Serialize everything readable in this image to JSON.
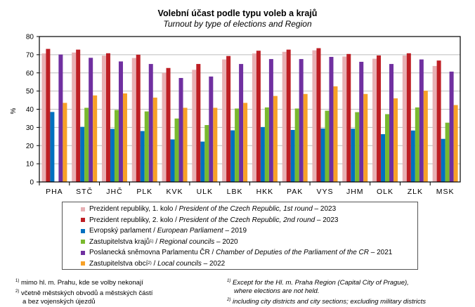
{
  "chart_data": {
    "type": "bar",
    "title": "Volební účast podle typu voleb a krajů",
    "subtitle": "Turnout by type of elections and Region",
    "ylabel": "%",
    "xlabel": "",
    "ylim": [
      0,
      80
    ],
    "yticks": [
      0,
      10,
      20,
      30,
      40,
      50,
      60,
      70,
      80
    ],
    "grid": true,
    "categories": [
      "PHA",
      "STČ",
      "JHČ",
      "PLK",
      "KVK",
      "ULK",
      "LBK",
      "HKK",
      "PAK",
      "VYS",
      "JHM",
      "OLK",
      "ZLK",
      "MSK"
    ],
    "series": [
      {
        "name": "Prezident republiky, 1. kolo",
        "name_en": "President of the Czech Republic, 1st round",
        "year": "2023",
        "sup": "",
        "color": "#e8b0b4",
        "values": [
          70.7,
          71.2,
          69.5,
          68.2,
          60.0,
          61.7,
          67.4,
          70.7,
          71.6,
          72.4,
          69.0,
          67.8,
          69.6,
          63.8
        ]
      },
      {
        "name": "Prezident republiky, 2. kolo",
        "name_en": "President of the Czech Republic, 2nd round",
        "year": "2023",
        "sup": "",
        "color": "#be1e24",
        "values": [
          73.2,
          72.8,
          70.8,
          70.0,
          62.7,
          64.9,
          69.3,
          72.2,
          72.8,
          73.6,
          70.4,
          69.6,
          70.8,
          66.8
        ]
      },
      {
        "name": "Evropský parlament",
        "name_en": "European Parliament",
        "year": "2019",
        "sup": "",
        "color": "#0070c0",
        "values": [
          38.5,
          30.3,
          29.2,
          28.0,
          23.4,
          22.2,
          28.4,
          30.2,
          28.6,
          29.4,
          29.3,
          26.3,
          28.3,
          23.7
        ]
      },
      {
        "name": "Zastupitelstva krajů",
        "name_en": "Regional councils",
        "year": "2020",
        "sup": "1)",
        "color": "#7ab92e",
        "values": [
          null,
          40.8,
          39.6,
          38.8,
          34.9,
          31.3,
          40.4,
          41.0,
          40.4,
          39.2,
          38.4,
          37.3,
          41.0,
          32.6
        ]
      },
      {
        "name": "Poslanecká sněmovna Parlamentu  ČR",
        "name_en": "Chamber of Deputies of the Parliament of the CR",
        "year": "2021",
        "sup": "",
        "color": "#7030a0",
        "values": [
          70.1,
          68.3,
          66.3,
          64.9,
          57.2,
          58.0,
          64.9,
          67.6,
          67.6,
          68.8,
          66.1,
          64.9,
          67.4,
          60.7
        ]
      },
      {
        "name": "Zastupitelstva obcí",
        "name_en": "Local councils",
        "year": "2022",
        "sup": "2)",
        "color": "#f7a128",
        "values": [
          43.5,
          47.6,
          48.7,
          46.4,
          40.8,
          40.8,
          43.5,
          47.3,
          48.4,
          52.6,
          48.4,
          46.0,
          50.2,
          42.3
        ]
      }
    ]
  },
  "footnotes": {
    "cz1": "mimo hl. m. Prahu, kde se volby nekonají",
    "cz2a": "včetně městských obvodů a městských částí",
    "cz2b": "a bez vojenských újezdů",
    "en1a": "Except for the Hl. m. Praha Region (Capital City of Prague),",
    "en1b": "where elections are not held.",
    "en2": "including city districts and city sections; excluding military districts",
    "m1": "1)",
    "m2": "2)"
  }
}
